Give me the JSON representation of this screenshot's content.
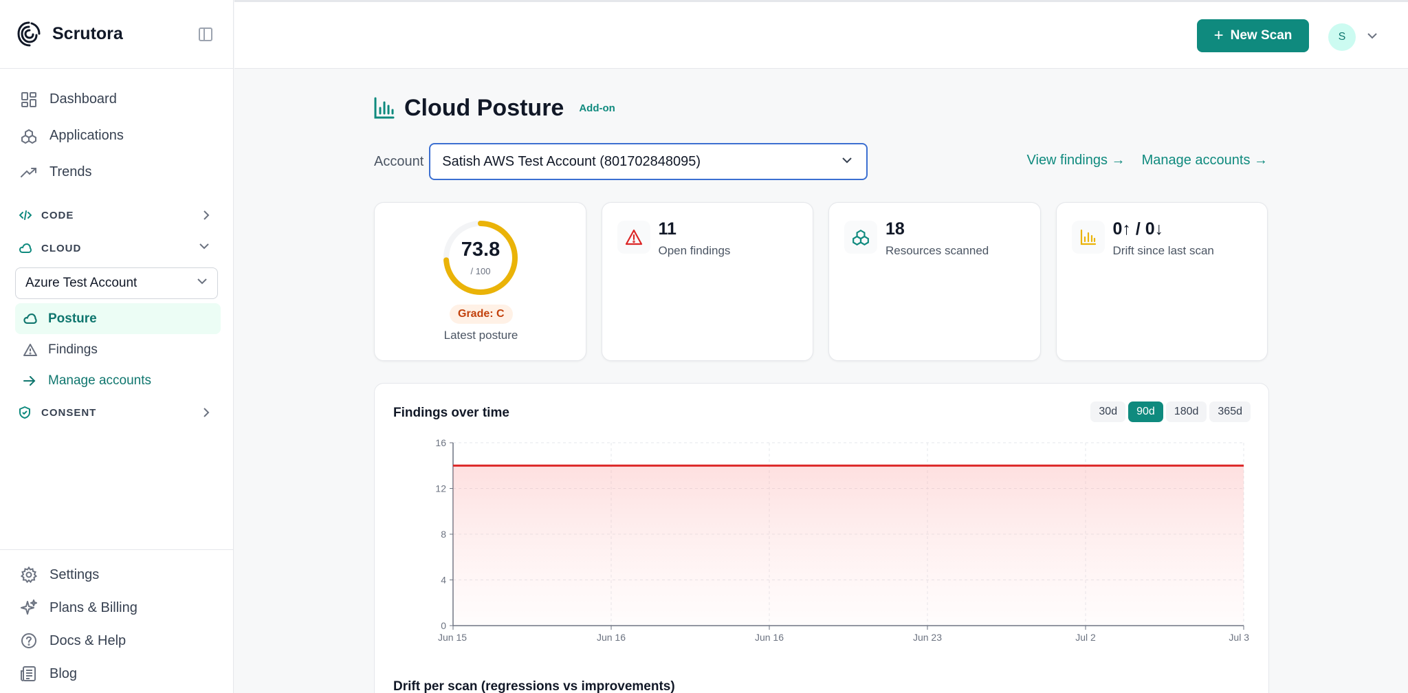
{
  "brand": {
    "name": "Scrutora"
  },
  "sidebar": {
    "nav": [
      {
        "label": "Dashboard",
        "icon": "dashboard-icon"
      },
      {
        "label": "Applications",
        "icon": "applications-icon"
      },
      {
        "label": "Trends",
        "icon": "trends-icon"
      }
    ],
    "sections": {
      "code": "CODE",
      "cloud": "CLOUD",
      "consent": "CONSENT"
    },
    "account_select": "Azure Test Account",
    "cloud_items": {
      "posture": "Posture",
      "findings": "Findings",
      "manage": "Manage accounts"
    },
    "bottom": [
      {
        "label": "Settings",
        "icon": "gear-icon"
      },
      {
        "label": "Plans & Billing",
        "icon": "sparkles-icon"
      },
      {
        "label": "Docs & Help",
        "icon": "help-icon"
      },
      {
        "label": "Blog",
        "icon": "newspaper-icon"
      }
    ]
  },
  "topbar": {
    "new_scan": "New Scan",
    "avatar": "S"
  },
  "page": {
    "title": "Cloud Posture",
    "badge": "Add-on",
    "account_label": "Account",
    "account_value": "Satish AWS Test Account (801702848095)",
    "links": {
      "view_findings": "View findings →",
      "manage_accounts": "Manage accounts →"
    }
  },
  "cards": {
    "score": {
      "value": "73.8",
      "max": "/ 100",
      "score_fraction": 0.738,
      "grade": "Grade: C",
      "label": "Latest posture",
      "color": "#eab308"
    },
    "open_findings": {
      "value": "11",
      "label": "Open findings"
    },
    "resources": {
      "value": "18",
      "label": "Resources scanned"
    },
    "drift": {
      "value": "0↑ / 0↓",
      "label": "Drift since last scan"
    }
  },
  "chart": {
    "title": "Findings over time",
    "ranges": [
      "30d",
      "90d",
      "180d",
      "365d"
    ],
    "active_range": "90d",
    "drift_title": "Drift per scan (regressions vs improvements)"
  },
  "chart_data": {
    "type": "area",
    "title": "Findings over time",
    "x": [
      "Jun 15",
      "Jun 16",
      "Jun 16",
      "Jun 23",
      "Jul 2",
      "Jul 3"
    ],
    "series": [
      {
        "values": [
          14,
          14,
          14,
          14,
          14,
          14
        ],
        "color": "#dc2626"
      }
    ],
    "yticks": [
      0,
      4,
      8,
      12,
      16
    ],
    "ylim": [
      0,
      16
    ],
    "grid": true
  }
}
